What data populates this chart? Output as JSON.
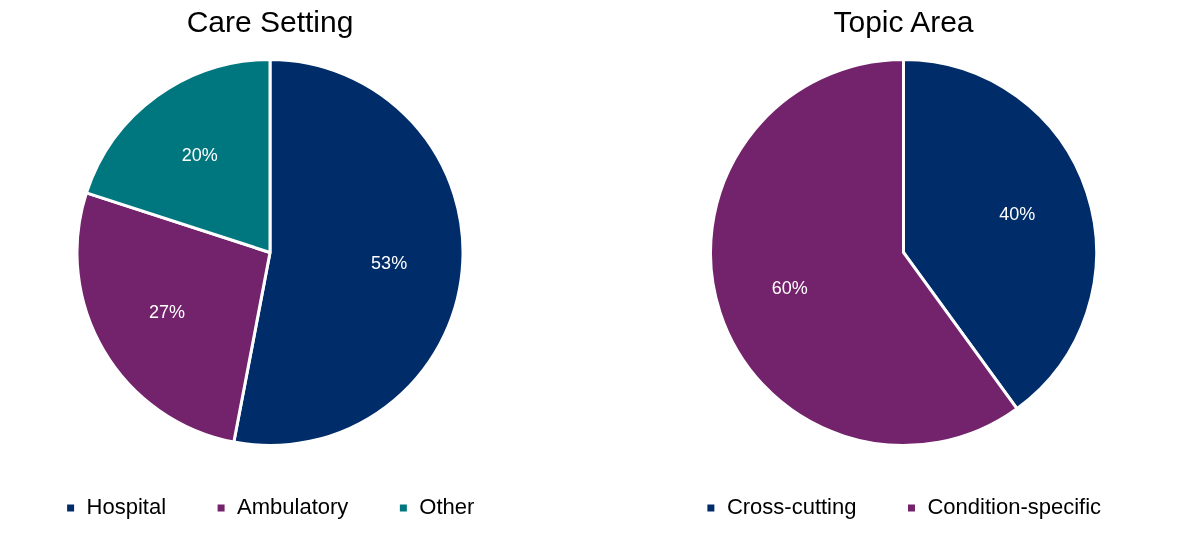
{
  "chart_data": [
    {
      "type": "pie",
      "title": "Care Setting",
      "categories": [
        "Hospital",
        "Ambulatory",
        "Other"
      ],
      "values": [
        53,
        27,
        20
      ],
      "value_labels": [
        "53%",
        "27%",
        "20%"
      ],
      "colors": [
        "#002d6a",
        "#73236b",
        "#00767f"
      ],
      "legend": "bottom"
    },
    {
      "type": "pie",
      "title": "Topic Area",
      "categories": [
        "Cross-cutting",
        "Condition-specific"
      ],
      "values": [
        40,
        60
      ],
      "value_labels": [
        "40%",
        "60%"
      ],
      "colors": [
        "#002d6a",
        "#73236b"
      ],
      "legend": "bottom"
    }
  ]
}
